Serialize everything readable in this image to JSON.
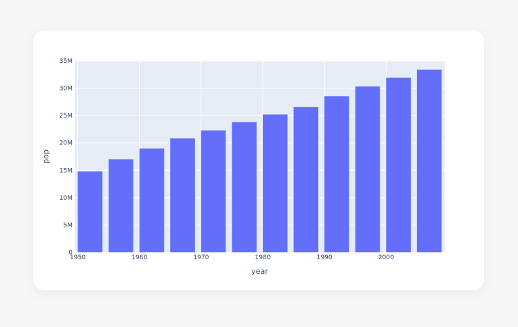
{
  "colors": {
    "plot_background": "#e5ecf6",
    "bar": "#636efa",
    "grid": "#ffffff",
    "text": "#2a3f5f"
  },
  "chart_data": {
    "type": "bar",
    "x": [
      1952,
      1957,
      1962,
      1967,
      1972,
      1977,
      1982,
      1987,
      1992,
      1997,
      2002,
      2007
    ],
    "values": [
      14785584,
      17010154,
      18985849,
      20819767,
      22284500,
      23796400,
      25201900,
      26549700,
      28523502,
      30305843,
      31902268,
      33390141
    ],
    "xlabel": "year",
    "ylabel": "pop",
    "xlim": [
      1949.5,
      2009.5
    ],
    "ylim": [
      0,
      35000000
    ],
    "x_ticks": [
      1950,
      1960,
      1970,
      1980,
      1990,
      2000
    ],
    "x_tick_labels": [
      "1950",
      "1960",
      "1970",
      "1980",
      "1990",
      "2000"
    ],
    "y_ticks": [
      0,
      5000000,
      10000000,
      15000000,
      20000000,
      25000000,
      30000000,
      35000000
    ],
    "y_tick_labels": [
      "0",
      "5M",
      "10M",
      "15M",
      "20M",
      "25M",
      "30M",
      "35M"
    ],
    "grid": true,
    "legend": "none"
  }
}
